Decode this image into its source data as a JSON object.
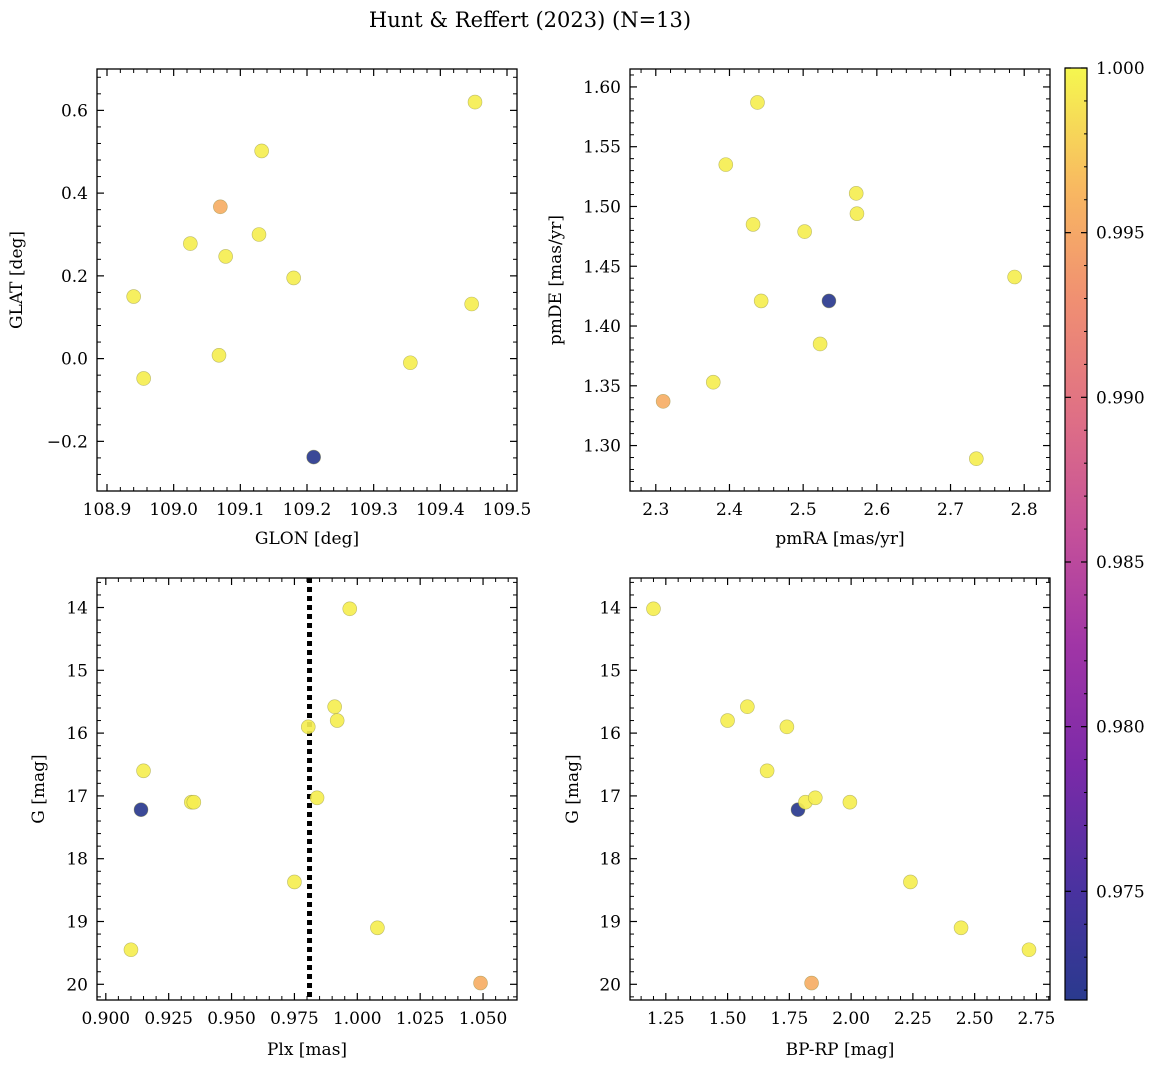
{
  "figure": {
    "title": "Hunt & Reffert (2023) (N=13)"
  },
  "colorbar": {
    "min": 0.9717,
    "max": 1.0,
    "ticks": [
      0.975,
      0.98,
      0.985,
      0.99,
      0.995,
      1.0
    ],
    "colormap": "plasma"
  },
  "chart_data": [
    {
      "type": "scatter",
      "xlabel": "GLON [deg]",
      "ylabel": "GLAT [deg]",
      "xlim": [
        108.885,
        109.515
      ],
      "ylim": [
        -0.32,
        0.7
      ],
      "xticks": [
        108.9,
        109.0,
        109.1,
        109.2,
        109.3,
        109.4,
        109.5
      ],
      "yticks": [
        -0.2,
        0.0,
        0.2,
        0.4,
        0.6
      ],
      "yinverted": false,
      "points": [
        {
          "x": 108.94,
          "y": 0.15,
          "c": 0.9995
        },
        {
          "x": 108.955,
          "y": -0.048,
          "c": 0.9995
        },
        {
          "x": 109.025,
          "y": 0.278,
          "c": 0.9995
        },
        {
          "x": 109.07,
          "y": 0.367,
          "c": 0.9955
        },
        {
          "x": 109.078,
          "y": 0.247,
          "c": 0.9995
        },
        {
          "x": 109.068,
          "y": 0.008,
          "c": 0.9995
        },
        {
          "x": 109.128,
          "y": 0.3,
          "c": 0.9995
        },
        {
          "x": 109.132,
          "y": 0.502,
          "c": 0.9995
        },
        {
          "x": 109.18,
          "y": 0.195,
          "c": 0.9995
        },
        {
          "x": 109.21,
          "y": -0.238,
          "c": 0.9717
        },
        {
          "x": 109.355,
          "y": -0.01,
          "c": 0.9995
        },
        {
          "x": 109.447,
          "y": 0.132,
          "c": 0.9995
        },
        {
          "x": 109.452,
          "y": 0.62,
          "c": 0.9995
        }
      ]
    },
    {
      "type": "scatter",
      "xlabel": "pmRA [mas/yr]",
      "ylabel": "pmDE [mas/yr]",
      "xlim": [
        2.265,
        2.835
      ],
      "ylim": [
        1.262,
        1.615
      ],
      "xticks": [
        2.3,
        2.4,
        2.5,
        2.6,
        2.7,
        2.8
      ],
      "yticks": [
        1.3,
        1.35,
        1.4,
        1.45,
        1.5,
        1.55,
        1.6
      ],
      "yinverted": false,
      "points": [
        {
          "x": 2.31,
          "y": 1.337,
          "c": 0.9955
        },
        {
          "x": 2.378,
          "y": 1.353,
          "c": 0.9995
        },
        {
          "x": 2.395,
          "y": 1.535,
          "c": 0.9995
        },
        {
          "x": 2.432,
          "y": 1.485,
          "c": 0.9995
        },
        {
          "x": 2.438,
          "y": 1.587,
          "c": 0.9995
        },
        {
          "x": 2.443,
          "y": 1.421,
          "c": 0.9995
        },
        {
          "x": 2.502,
          "y": 1.479,
          "c": 0.9995
        },
        {
          "x": 2.523,
          "y": 1.385,
          "c": 0.9995
        },
        {
          "x": 2.535,
          "y": 1.421,
          "c": 0.9717
        },
        {
          "x": 2.572,
          "y": 1.511,
          "c": 0.9995
        },
        {
          "x": 2.573,
          "y": 1.494,
          "c": 0.9995
        },
        {
          "x": 2.735,
          "y": 1.289,
          "c": 0.9995
        },
        {
          "x": 2.787,
          "y": 1.441,
          "c": 0.9995
        }
      ]
    },
    {
      "type": "scatter",
      "xlabel": "Plx [mas]",
      "ylabel": "G [mag]",
      "xlim": [
        0.8965,
        1.0635
      ],
      "ylim": [
        20.25,
        13.53
      ],
      "xticks": [
        0.9,
        0.925,
        0.95,
        0.975,
        1.0,
        1.025,
        1.05
      ],
      "xticklabels": [
        "0.900",
        "0.925",
        "0.950",
        "0.975",
        "1.000",
        "1.025",
        "1.050"
      ],
      "yticks": [
        14,
        15,
        16,
        17,
        18,
        19,
        20
      ],
      "yinverted": true,
      "vline": {
        "x": 0.981,
        "style": "dotted"
      },
      "points": [
        {
          "x": 0.91,
          "y": 19.45,
          "c": 0.9995
        },
        {
          "x": 0.914,
          "y": 17.22,
          "c": 0.9717
        },
        {
          "x": 0.915,
          "y": 16.6,
          "c": 0.9995
        },
        {
          "x": 0.934,
          "y": 17.1,
          "c": 0.9995
        },
        {
          "x": 0.935,
          "y": 17.1,
          "c": 0.9995
        },
        {
          "x": 0.975,
          "y": 18.37,
          "c": 0.9995
        },
        {
          "x": 0.9805,
          "y": 15.9,
          "c": 0.9995
        },
        {
          "x": 0.984,
          "y": 17.03,
          "c": 0.9995
        },
        {
          "x": 0.991,
          "y": 15.58,
          "c": 0.9995
        },
        {
          "x": 0.992,
          "y": 15.8,
          "c": 0.9995
        },
        {
          "x": 0.997,
          "y": 14.02,
          "c": 0.9995
        },
        {
          "x": 1.008,
          "y": 19.1,
          "c": 0.9995
        },
        {
          "x": 1.049,
          "y": 19.98,
          "c": 0.9955
        }
      ]
    },
    {
      "type": "scatter",
      "xlabel": "BP-RP [mag]",
      "ylabel": "G [mag]",
      "xlim": [
        1.105,
        2.805
      ],
      "ylim": [
        20.25,
        13.53
      ],
      "xticks": [
        1.25,
        1.5,
        1.75,
        2.0,
        2.25,
        2.5,
        2.75
      ],
      "xticklabels": [
        "1.25",
        "1.50",
        "1.75",
        "2.00",
        "2.25",
        "2.50",
        "2.75"
      ],
      "yticks": [
        14,
        15,
        16,
        17,
        18,
        19,
        20
      ],
      "yinverted": true,
      "points": [
        {
          "x": 1.2,
          "y": 14.02,
          "c": 0.9995
        },
        {
          "x": 1.5,
          "y": 15.8,
          "c": 0.9995
        },
        {
          "x": 1.58,
          "y": 15.58,
          "c": 0.9995
        },
        {
          "x": 1.66,
          "y": 16.6,
          "c": 0.9995
        },
        {
          "x": 1.74,
          "y": 15.9,
          "c": 0.9995
        },
        {
          "x": 1.785,
          "y": 17.22,
          "c": 0.9717
        },
        {
          "x": 1.815,
          "y": 17.1,
          "c": 0.9995
        },
        {
          "x": 1.855,
          "y": 17.03,
          "c": 0.9995
        },
        {
          "x": 1.84,
          "y": 19.98,
          "c": 0.9955
        },
        {
          "x": 1.995,
          "y": 17.1,
          "c": 0.9995
        },
        {
          "x": 2.24,
          "y": 18.37,
          "c": 0.9995
        },
        {
          "x": 2.445,
          "y": 19.1,
          "c": 0.9995
        },
        {
          "x": 2.72,
          "y": 19.45,
          "c": 0.9995
        }
      ]
    }
  ]
}
